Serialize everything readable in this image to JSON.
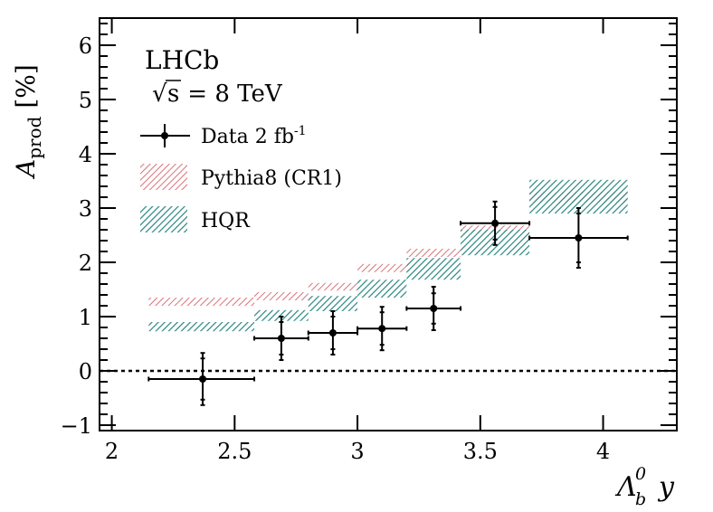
{
  "chart_data": {
    "type": "scatter",
    "title": "",
    "experiment": "LHCb",
    "energy": {
      "symbol": "s",
      "text": " = 8 TeV"
    },
    "ylabel": {
      "main": "A",
      "sub": "prod",
      "unit": " [%]"
    },
    "xlabel": {
      "main": "Λ",
      "sub": "b",
      "sup": "0",
      "var": "y"
    },
    "xlim": [
      1.95,
      4.3
    ],
    "ylim": [
      -1.1,
      6.5
    ],
    "xticks": [
      2,
      2.5,
      3,
      3.5,
      4
    ],
    "xtick_labels": [
      "2",
      "2.5",
      "3",
      "3.5",
      "4"
    ],
    "yticks": [
      -1,
      0,
      1,
      2,
      3,
      4,
      5,
      6
    ],
    "ytick_labels": [
      "−1",
      "0",
      "1",
      "2",
      "3",
      "4",
      "5",
      "6"
    ],
    "zero_line": true,
    "legend": {
      "position": "top-left",
      "entries": [
        {
          "key": "data",
          "label": "Data 2 fb",
          "label_sup": "-1"
        },
        {
          "key": "pythia",
          "label": "Pythia8 (CR1)"
        },
        {
          "key": "hqr",
          "label": "HQR"
        }
      ]
    },
    "colors": {
      "data": "#000000",
      "pythia": "#d9737a",
      "hqr": "#2a8582"
    },
    "series": [
      {
        "name": "Data 2 fb-1",
        "kind": "points",
        "points": [
          {
            "x": 2.37,
            "xlo": 2.15,
            "xhi": 2.58,
            "y": -0.15,
            "stat": 0.38,
            "tot": 0.48
          },
          {
            "x": 2.69,
            "xlo": 2.58,
            "xhi": 2.8,
            "y": 0.6,
            "stat": 0.3,
            "tot": 0.4
          },
          {
            "x": 2.9,
            "xlo": 2.8,
            "xhi": 3.0,
            "y": 0.7,
            "stat": 0.3,
            "tot": 0.4
          },
          {
            "x": 3.1,
            "xlo": 3.0,
            "xhi": 3.2,
            "y": 0.78,
            "stat": 0.3,
            "tot": 0.4
          },
          {
            "x": 3.31,
            "xlo": 3.2,
            "xhi": 3.42,
            "y": 1.15,
            "stat": 0.28,
            "tot": 0.4
          },
          {
            "x": 3.56,
            "xlo": 3.42,
            "xhi": 3.7,
            "y": 2.72,
            "stat": 0.3,
            "tot": 0.4
          },
          {
            "x": 3.9,
            "xlo": 3.7,
            "xhi": 4.1,
            "y": 2.45,
            "stat": 0.45,
            "tot": 0.55
          }
        ]
      },
      {
        "name": "Pythia8 (CR1)",
        "kind": "bands",
        "bins": [
          {
            "xlo": 2.15,
            "xhi": 2.58,
            "ylo": 1.2,
            "yhi": 1.35
          },
          {
            "xlo": 2.58,
            "xhi": 2.8,
            "ylo": 1.3,
            "yhi": 1.45
          },
          {
            "xlo": 2.8,
            "xhi": 3.0,
            "ylo": 1.48,
            "yhi": 1.62
          },
          {
            "xlo": 3.0,
            "xhi": 3.2,
            "ylo": 1.82,
            "yhi": 1.97
          },
          {
            "xlo": 3.2,
            "xhi": 3.42,
            "ylo": 2.1,
            "yhi": 2.25
          },
          {
            "xlo": 3.42,
            "xhi": 3.7,
            "ylo": 2.55,
            "yhi": 2.68
          },
          {
            "xlo": 3.7,
            "xhi": 4.1,
            "ylo": 3.1,
            "yhi": 3.3
          }
        ]
      },
      {
        "name": "HQR",
        "kind": "bands",
        "bins": [
          {
            "xlo": 2.15,
            "xhi": 2.58,
            "ylo": 0.73,
            "yhi": 0.9
          },
          {
            "xlo": 2.58,
            "xhi": 2.8,
            "ylo": 0.92,
            "yhi": 1.12
          },
          {
            "xlo": 2.8,
            "xhi": 3.0,
            "ylo": 1.1,
            "yhi": 1.38
          },
          {
            "xlo": 3.0,
            "xhi": 3.2,
            "ylo": 1.35,
            "yhi": 1.68
          },
          {
            "xlo": 3.2,
            "xhi": 3.42,
            "ylo": 1.68,
            "yhi": 2.08
          },
          {
            "xlo": 3.42,
            "xhi": 3.7,
            "ylo": 2.13,
            "yhi": 2.6
          },
          {
            "xlo": 3.7,
            "xhi": 4.1,
            "ylo": 2.9,
            "yhi": 3.52
          }
        ]
      }
    ]
  }
}
